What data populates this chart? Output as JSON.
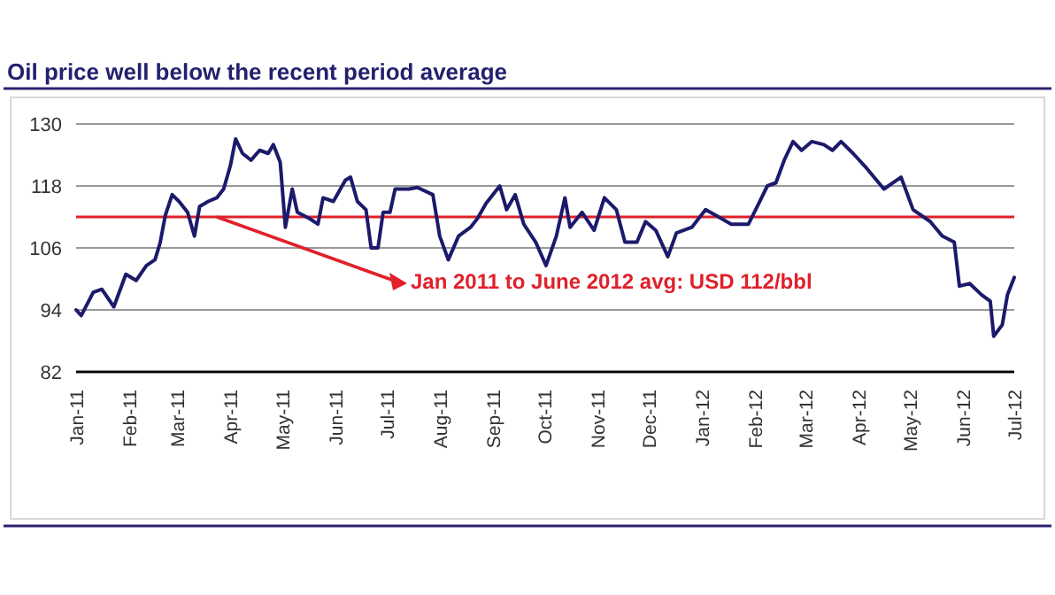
{
  "chart_data": {
    "type": "line",
    "title": "Oil price well below the recent period average",
    "x": [
      "2011-01-01",
      "2011-01-04",
      "2011-01-11",
      "2011-01-16",
      "2011-01-23",
      "2011-01-30",
      "2011-02-05",
      "2011-02-11",
      "2011-02-16",
      "2011-02-19",
      "2011-02-22",
      "2011-02-26",
      "2011-03-02",
      "2011-03-07",
      "2011-03-11",
      "2011-03-14",
      "2011-03-19",
      "2011-03-24",
      "2011-03-28",
      "2011-04-01",
      "2011-04-04",
      "2011-04-08",
      "2011-04-13",
      "2011-04-18",
      "2011-04-23",
      "2011-04-26",
      "2011-04-30",
      "2011-05-03",
      "2011-05-07",
      "2011-05-10",
      "2011-05-17",
      "2011-05-22",
      "2011-05-25",
      "2011-05-31",
      "2011-06-07",
      "2011-06-10",
      "2011-06-14",
      "2011-06-19",
      "2011-06-22",
      "2011-06-26",
      "2011-06-29",
      "2011-07-03",
      "2011-07-06",
      "2011-07-14",
      "2011-07-19",
      "2011-07-28",
      "2011-08-01",
      "2011-08-06",
      "2011-08-12",
      "2011-08-19",
      "2011-08-23",
      "2011-08-28",
      "2011-09-05",
      "2011-09-09",
      "2011-09-14",
      "2011-09-19",
      "2011-09-26",
      "2011-10-02",
      "2011-10-08",
      "2011-10-13",
      "2011-10-16",
      "2011-10-23",
      "2011-10-30",
      "2011-11-05",
      "2011-11-12",
      "2011-11-17",
      "2011-11-24",
      "2011-11-29",
      "2011-12-05",
      "2011-12-12",
      "2011-12-17",
      "2011-12-26",
      "2012-01-03",
      "2012-01-09",
      "2012-01-18",
      "2012-01-28",
      "2012-02-03",
      "2012-02-08",
      "2012-02-13",
      "2012-02-18",
      "2012-02-23",
      "2012-02-28",
      "2012-03-05",
      "2012-03-12",
      "2012-03-17",
      "2012-03-22",
      "2012-03-29",
      "2012-04-06",
      "2012-04-16",
      "2012-04-26",
      "2012-05-03",
      "2012-05-13",
      "2012-05-20",
      "2012-05-27",
      "2012-05-30",
      "2012-06-05",
      "2012-06-12",
      "2012-06-17",
      "2012-06-19",
      "2012-06-24",
      "2012-06-27",
      "2012-07-01"
    ],
    "series": [
      {
        "color": "#1c1a6b",
        "values": [
          94,
          92.9,
          97.4,
          98,
          94.6,
          100.9,
          99.7,
          102.6,
          103.7,
          107,
          112.3,
          116.3,
          115,
          112.9,
          108.3,
          114,
          115,
          115.7,
          117.4,
          122,
          127.1,
          124.3,
          123,
          124.9,
          124.3,
          126,
          122.6,
          110,
          117.4,
          112.9,
          111.7,
          110.6,
          115.7,
          115,
          119.1,
          119.7,
          115,
          113.4,
          106,
          106,
          112.9,
          112.9,
          117.4,
          117.4,
          117.7,
          116.3,
          108.3,
          103.7,
          108.3,
          110,
          111.7,
          114.6,
          118,
          113.4,
          116.3,
          110.6,
          107.1,
          102.6,
          108.3,
          115.7,
          110,
          112.9,
          109.4,
          115.7,
          113.4,
          107.1,
          107.1,
          111.1,
          109.4,
          104.3,
          108.9,
          110,
          113.4,
          112.3,
          110.6,
          110.6,
          114.6,
          118,
          118.6,
          123.1,
          126.6,
          124.9,
          126.6,
          126,
          124.9,
          126.6,
          124.3,
          121.4,
          117.4,
          119.7,
          113.4,
          111.1,
          108.3,
          107.1,
          98.6,
          99.1,
          96.9,
          95.7,
          88.9,
          91.1,
          96.9,
          100.3
        ]
      }
    ],
    "xlim": [
      "2011-01-01",
      "2012-07-01"
    ],
    "xticks": [
      {
        "value": "2011-01-01",
        "label": "Jan-11"
      },
      {
        "value": "2011-02-01",
        "label": "Feb-11"
      },
      {
        "value": "2011-03-01",
        "label": "Mar-11"
      },
      {
        "value": "2011-04-01",
        "label": "Apr-11"
      },
      {
        "value": "2011-05-01",
        "label": "May-11"
      },
      {
        "value": "2011-06-01",
        "label": "Jun-11"
      },
      {
        "value": "2011-07-01",
        "label": "Jul-11"
      },
      {
        "value": "2011-08-01",
        "label": "Aug-11"
      },
      {
        "value": "2011-09-01",
        "label": "Sep-11"
      },
      {
        "value": "2011-10-01",
        "label": "Oct-11"
      },
      {
        "value": "2011-11-01",
        "label": "Nov-11"
      },
      {
        "value": "2011-12-01",
        "label": "Dec-11"
      },
      {
        "value": "2012-01-01",
        "label": "Jan-12"
      },
      {
        "value": "2012-02-01",
        "label": "Feb-12"
      },
      {
        "value": "2012-03-01",
        "label": "Mar-12"
      },
      {
        "value": "2012-04-01",
        "label": "Apr-12"
      },
      {
        "value": "2012-05-01",
        "label": "May-12"
      },
      {
        "value": "2012-06-01",
        "label": "Jun-12"
      },
      {
        "value": "2012-07-01",
        "label": "Jul-12"
      }
    ],
    "ylim": [
      82,
      130
    ],
    "yticks": [
      82,
      94,
      106,
      118,
      130
    ],
    "grid": "y",
    "ref_lines": [
      {
        "axis": "y",
        "value": 112,
        "color": "#e0202a",
        "label": "Jan 2011 to June 2012 avg: USD 112/bbl"
      }
    ]
  }
}
